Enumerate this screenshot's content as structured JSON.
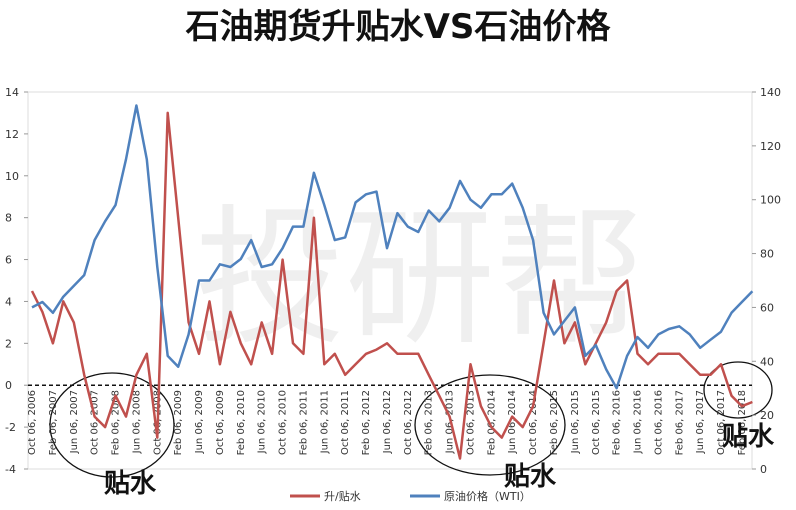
{
  "chart_data": {
    "type": "line",
    "title": "石油期货升贴水VS石油价格",
    "watermark": "投研帮",
    "annotations": [
      "贴水",
      "贴水",
      "贴水"
    ],
    "categories": [
      "Oct 06, 2006",
      null,
      "Feb 06, 2007",
      null,
      "Jun 06, 2007",
      null,
      "Oct 06, 2007",
      null,
      "Feb 06, 2008",
      null,
      "Jun 06, 2008",
      null,
      "Oct 06, 2008",
      null,
      "Feb 06, 2009",
      null,
      "Jun 06, 2009",
      null,
      "Oct 06, 2009",
      null,
      "Feb 06, 2010",
      null,
      "Jun 06, 2010",
      null,
      "Oct 06, 2010",
      null,
      "Feb 06, 2011",
      null,
      "Jun 06, 2011",
      null,
      "Oct 06, 2011",
      null,
      "Feb 06, 2012",
      null,
      "Jun 06, 2012",
      null,
      "Oct 06, 2012",
      null,
      "Feb 06, 2013",
      null,
      "Jun 06, 2013",
      null,
      "Oct 06, 2013",
      null,
      "Feb 06, 2014",
      null,
      "Jun 06, 2014",
      null,
      "Oct 06, 2014",
      null,
      "Feb 06, 2015",
      null,
      "Jun 06, 2015",
      null,
      "Oct 06, 2015",
      null,
      "Feb 06, 2016",
      null,
      "Jun 06, 2016",
      null,
      "Oct 06, 2016",
      null,
      "Feb 06, 2017",
      null,
      "Jun 06, 2017",
      null,
      "Oct 06, 2017",
      null,
      "Feb 06, 2018",
      null
    ],
    "series": [
      {
        "name": "升/贴水",
        "color": "#c0504d",
        "values": [
          4.5,
          3.5,
          2,
          4,
          3,
          0.5,
          -1.5,
          -2,
          -0.5,
          -1.5,
          0.5,
          1.5,
          -2.5,
          13,
          8,
          3,
          1.5,
          4,
          1,
          3.5,
          2,
          1,
          3,
          1.5,
          6,
          2,
          1.5,
          8,
          1,
          1.5,
          0.5,
          1,
          1.5,
          1.7,
          2,
          1.5,
          1.5,
          1.5,
          0.5,
          -0.5,
          -1.5,
          -3.5,
          1,
          -1,
          -2,
          -2.5,
          -1.5,
          -2,
          -1,
          2,
          5,
          2,
          3,
          1,
          2,
          3,
          4.5,
          5,
          1.5,
          1,
          1.5,
          1.5,
          1.5,
          1,
          0.5,
          0.5,
          1,
          -0.5,
          -1,
          -0.8
        ]
      },
      {
        "name": "原油价格（WTI）",
        "color": "#4f81bd",
        "axis": "y2",
        "values": [
          60,
          62,
          58,
          64,
          68,
          72,
          85,
          92,
          98,
          115,
          135,
          115,
          75,
          42,
          38,
          50,
          70,
          70,
          76,
          75,
          78,
          85,
          75,
          76,
          82,
          90,
          90,
          110,
          98,
          85,
          86,
          99,
          102,
          103,
          82,
          95,
          90,
          88,
          96,
          92,
          97,
          107,
          100,
          97,
          102,
          102,
          106,
          97,
          85,
          58,
          50,
          55,
          60,
          42,
          46,
          37,
          30,
          42,
          49,
          45,
          50,
          52,
          53,
          50,
          45,
          48,
          51,
          58,
          62,
          66
        ]
      }
    ],
    "ylim": [
      -4,
      14
    ],
    "yticks": [
      -4,
      -2,
      0,
      2,
      4,
      6,
      8,
      10,
      12,
      14
    ],
    "y2lim": [
      0,
      140
    ],
    "y2ticks": [
      0,
      20,
      40,
      60,
      80,
      100,
      120,
      140
    ],
    "legend": "bottom"
  }
}
